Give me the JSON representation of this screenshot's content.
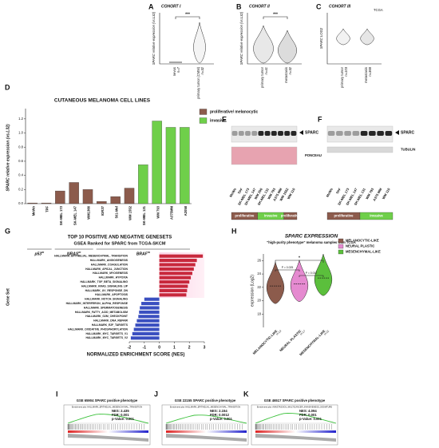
{
  "panels": {
    "A": {
      "letter": "A",
      "cohort": "COHORT I",
      "ylabel": "SPARC relative expression (vs.L32)",
      "groups": [
        "nevus",
        "primary tumor (CMM)"
      ],
      "n": [
        "n=7",
        "n=32"
      ],
      "sig": "***"
    },
    "B": {
      "letter": "B",
      "cohort": "COHORT II",
      "ylabel": "SPARC relative expression (vs.L32)",
      "groups": [
        "primary tumor",
        "metastasis"
      ],
      "n": [
        "n=41",
        "n=32"
      ],
      "sig": "***"
    },
    "C": {
      "letter": "C",
      "cohort": "COHORT III",
      "source": "TCGA",
      "ylabel": "SPARC LOG2",
      "groups": [
        "primary tumor",
        "metastasis"
      ],
      "n": [
        "n=103",
        "n=368"
      ]
    },
    "D": {
      "letter": "D",
      "mutations": [
        "p53",
        "NRAS",
        "BRAF"
      ],
      "superscript": "m"
    },
    "E": {
      "letter": "E",
      "band": "SPARC",
      "loading": "PONCEAU",
      "lanes": [
        "MeWo",
        "TPF",
        "SK-MEL 173",
        "SK-MEL 147",
        "WM 266",
        "SK-MEL 131",
        "WM 793",
        "A375 MM",
        "WM 1552",
        "WM 115"
      ],
      "phenotypes": [
        "proliferative",
        "invasive",
        "proliferative"
      ]
    },
    "F": {
      "letter": "F",
      "band": "SPARC",
      "loading": "TUBULIN",
      "lanes": [
        "MeWo",
        "TPF",
        "SK-MEL 173",
        "SK-MEL 147",
        "SK-MEL 131",
        "WM 793",
        "A375 MM",
        "WM 115"
      ],
      "phenotypes": [
        "proliferative",
        "invasive"
      ]
    },
    "G": {
      "letter": "G"
    },
    "H": {
      "letter": "H"
    },
    "gsea": [
      {
        "letter": "I",
        "title": "GSE 65904 SPARC positive phenotype",
        "plot_title": "Enrichment plot: HALLMARK_EPITHELIAL_MESENCHYMAL_TRANSITION",
        "stats": [
          "NES: 2.435",
          "FDR: 0.001",
          "p-Value: 0.001"
        ]
      },
      {
        "letter": "J",
        "title": "GSE 22155 SPARC positive phenotype",
        "plot_title": "Enrichment plot: HALLMARK_EPITHELIAL_MESENCHYMAL_TRANSITION",
        "stats": [
          "NES: 2.154",
          "FDR: 0.0012",
          "p-Value: 0.001"
        ]
      },
      {
        "letter": "K",
        "title": "GSE 46517 SPARC positive phenotype",
        "plot_title": "Enrichment plot: ANASTASSIOU_MULTICANCER_INVASIVENESS_SIGNATURE",
        "stats": [
          "NES: 4.094",
          "FDR: 0.001",
          "p-Value: 0.001"
        ]
      }
    ]
  },
  "chart_data": [
    {
      "type": "bar",
      "title": "CUTANEOUS MELANOMA CELL LINES",
      "ylabel": "SPARC relative expression (vs.L32)",
      "categories": [
        "MeWo",
        "TPF",
        "SK-MEL 173",
        "SK-MEL 147",
        "WM1366",
        "IGR37",
        "501-Mel",
        "WM 1552",
        "SK-MEL 131",
        "WM 793",
        "A375MM",
        "A2058"
      ],
      "series": [
        {
          "name": "proliferative/ melanocytic",
          "color": "#8c5b4c",
          "values": [
            0.01,
            0.01,
            0.18,
            0.3,
            0.2,
            0.03,
            0.1,
            0.22,
            null,
            null,
            null,
            null
          ]
        },
        {
          "name": "invasive",
          "color": "#6fcf4a",
          "values": [
            null,
            null,
            null,
            null,
            null,
            null,
            null,
            null,
            0.55,
            1.17,
            1.08,
            1.08
          ]
        }
      ],
      "ylim": [
        0,
        1.3
      ],
      "yticks": [
        {
          "value": 0,
          "label": "0.0"
        },
        {
          "value": 0.2,
          "label": "0.2"
        },
        {
          "value": 0.4,
          "label": "0.4"
        },
        {
          "value": 0.6,
          "label": "0.6"
        },
        {
          "value": 0.8,
          "label": "0.8"
        },
        {
          "value": 1,
          "label": "1.0"
        },
        {
          "value": 1.2,
          "label": "1.2"
        }
      ],
      "legend": "right"
    },
    {
      "type": "hbar",
      "title": "TOP 10 POSITIVE AND NEGATIVE GENESETS",
      "subtitle": "GSEA Ranked for SPARC from TCGA-SKCM",
      "xlabel": "NORMALIZED ENRICHMENT SCORE (NES)",
      "ylabel": "Gene Set",
      "categories": [
        "HALLMARK_EPITHELIAL_MESENCHYMAL_TRANSITION",
        "HALLMARK_ANGIOGENESIS",
        "HALLMARK_COAGULATION",
        "HALLMARK_APICAL_JUNCTION",
        "HALLMARK_MYOGENESIS",
        "HALLMARK_HYPOXIA",
        "HALLMARK_TGF_BETA_SIGNALING",
        "HALLMARK_KRAS_SIGNALING_UP",
        "HALLMARK_UV_RESPONSE_DN",
        "HALLMARK_APOPTOSIS",
        "HALLMARK_NOTCH_SIGNALING",
        "HALLMARK_INTERFERON_ALPHA_RESPONSE",
        "HALLMARK_SPERMATOGENESIS",
        "HALLMARK_FATTY_ACID_METABOLISM",
        "HALLMARK_G2M_CHECKPOINT",
        "HALLMARK_DNA_REPAIR",
        "HALLMARK_E2F_TARGETS",
        "HALLMARK_OXIDATIVE_PHOSPHORYLATION",
        "HALLMARK_MYC_TARGETS_V1",
        "HALLMARK_MYC_TARGETS_V2"
      ],
      "values": [
        2.9,
        2.5,
        2.4,
        2.3,
        2.2,
        2.1,
        2.0,
        1.9,
        1.85,
        1.8,
        -1.0,
        -1.2,
        -1.3,
        -1.35,
        -1.4,
        -1.5,
        -1.6,
        -1.7,
        -1.8,
        -1.9
      ],
      "positive_color": "#c8283c",
      "negative_color": "#3a4fc0",
      "xlim": [
        -2,
        3
      ],
      "xticks": [
        -2,
        -1,
        0,
        1,
        2,
        3
      ]
    },
    {
      "type": "violin",
      "title": "SPARC EXPRESSION",
      "subtitle": "\"high-purity phenotype\" melanoma samples from TCGA",
      "ylabel": "expression (Log2)",
      "categories": [
        "MELANOCYTIC-LIKE",
        "NEURAL PLASTIC",
        "MESENCHYMAL-LIKE"
      ],
      "n": [
        "n=13",
        "n=17",
        "n=21"
      ],
      "values": [
        22.2,
        22.5,
        23.4
      ],
      "colors": [
        "#8c5b4c",
        "#e58ad0",
        "#5bbf3c"
      ],
      "ylim": [
        16,
        27
      ],
      "yticks": [
        18,
        20,
        22,
        24,
        26
      ],
      "annotations": [
        "P = 0.025",
        "P = 0.017",
        "*"
      ],
      "legend": "upper right"
    }
  ]
}
